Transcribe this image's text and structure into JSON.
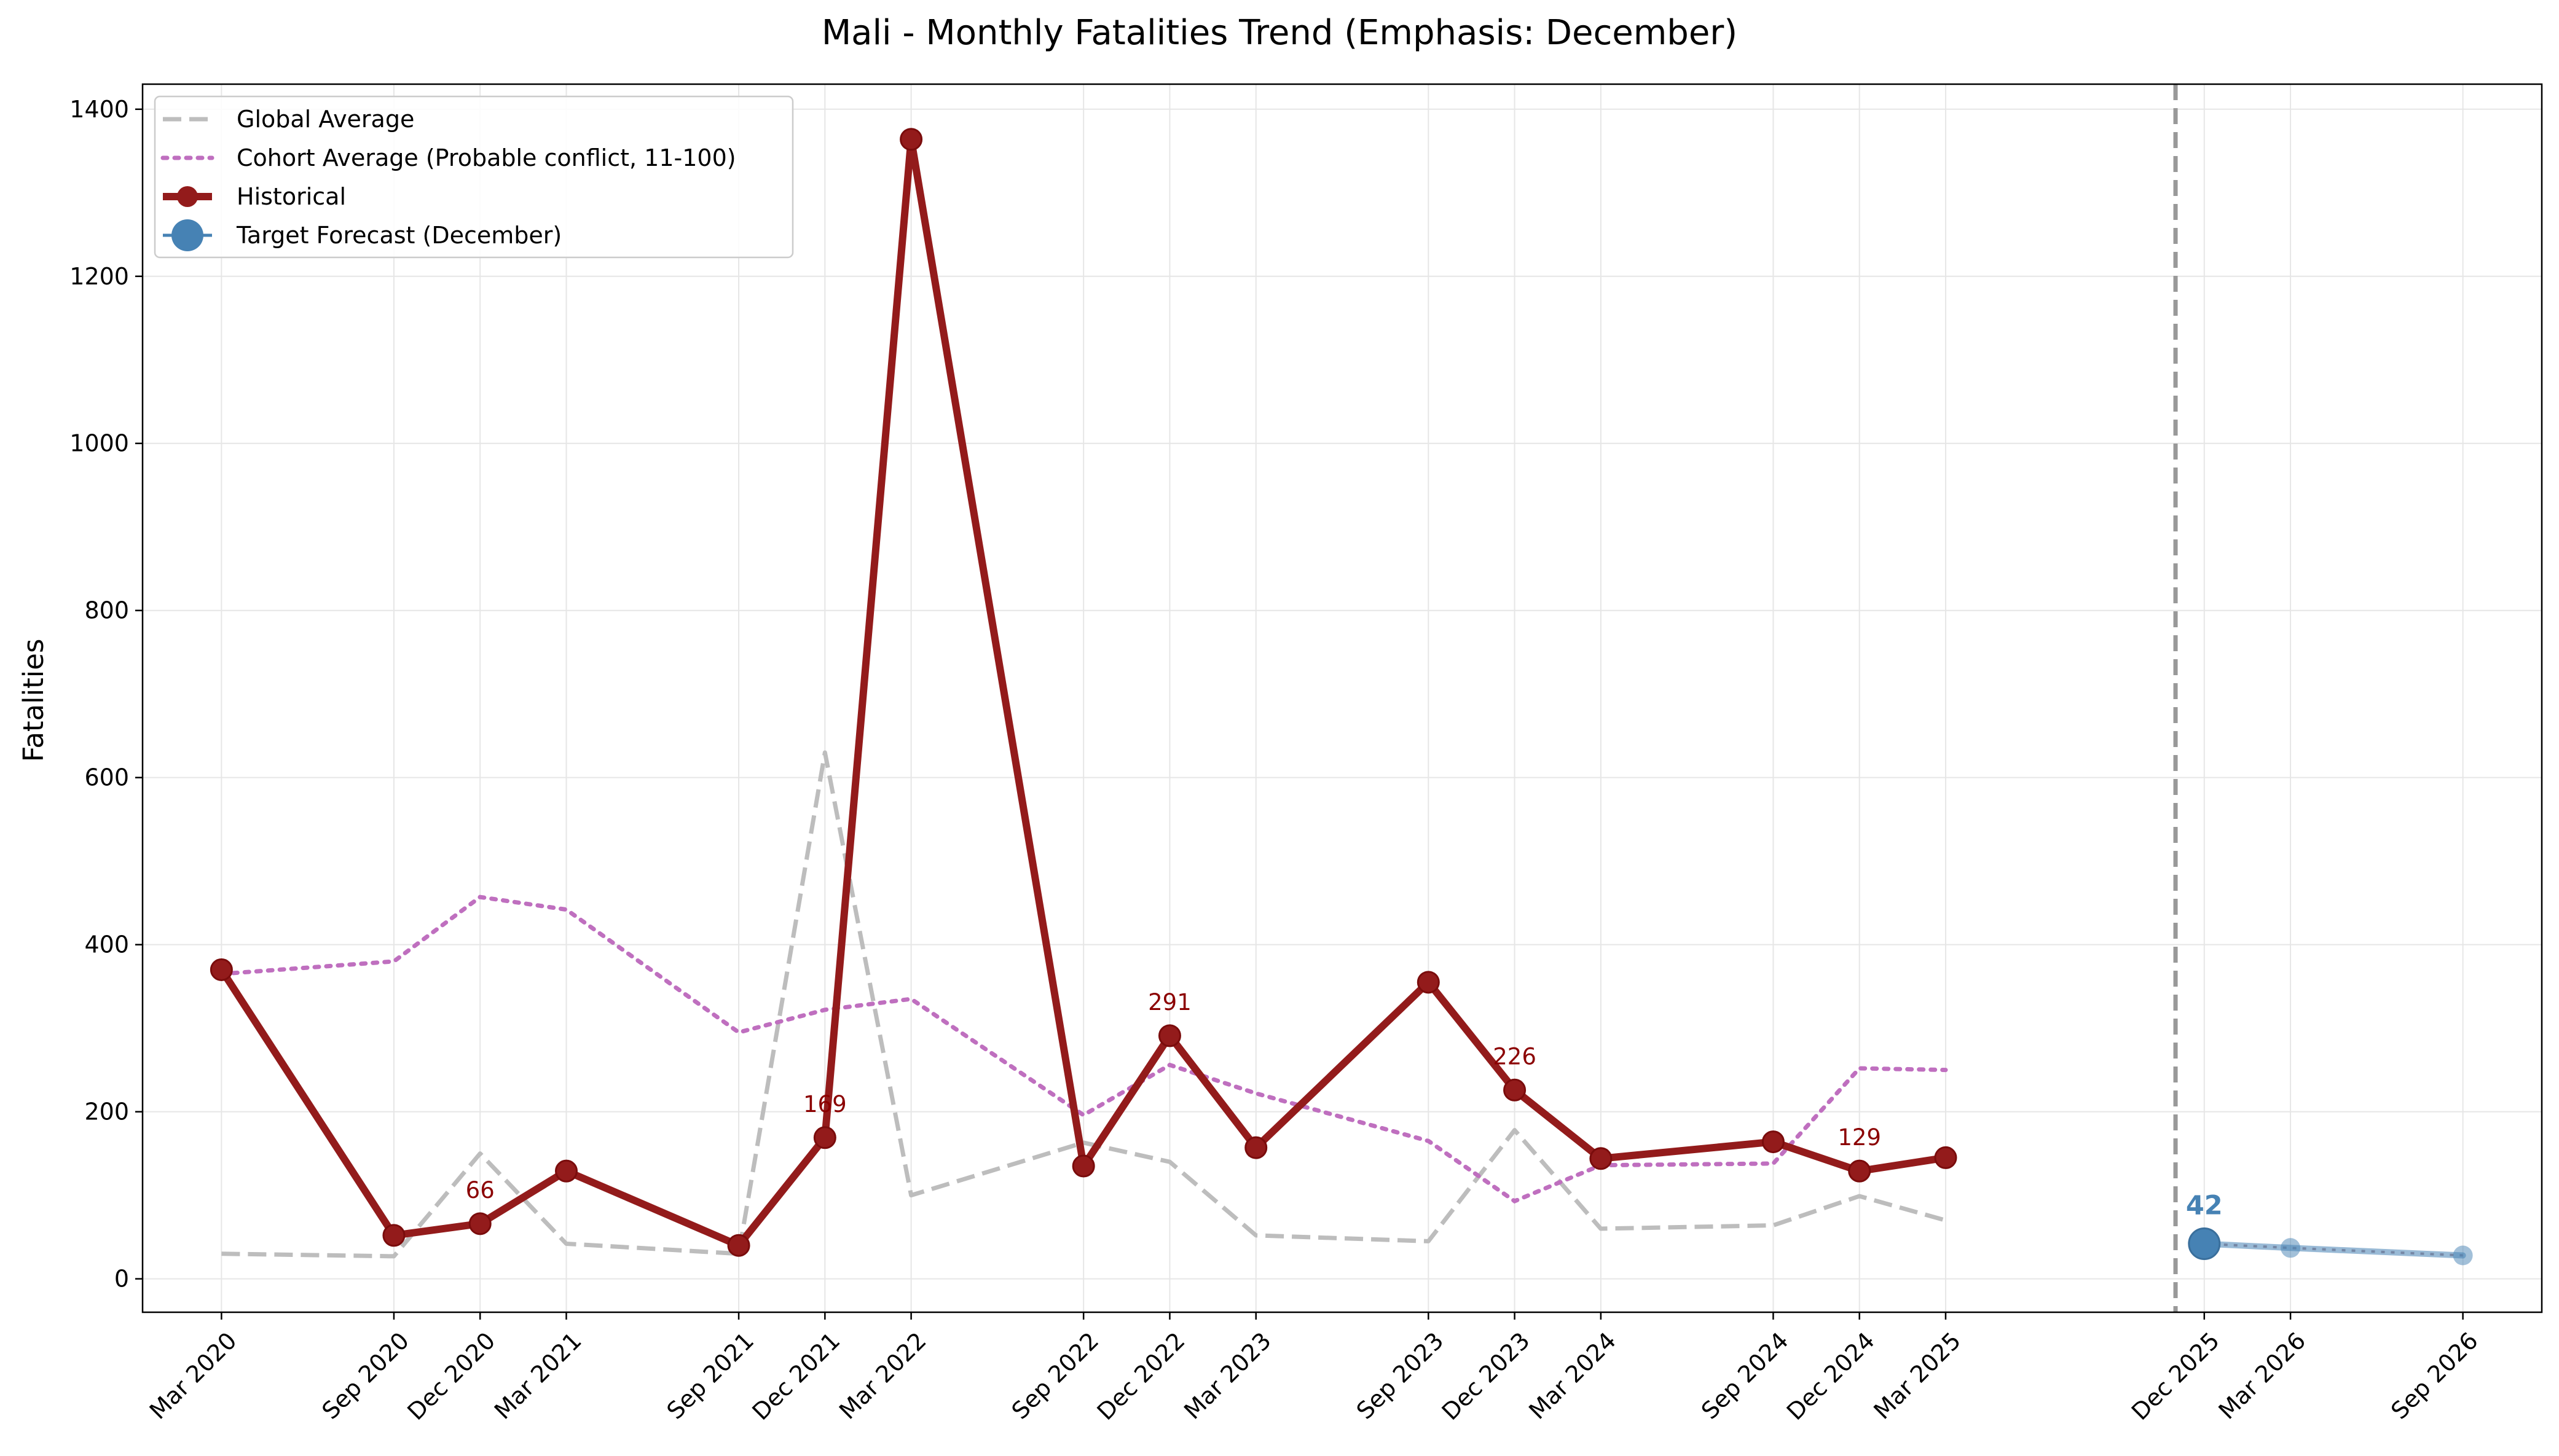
{
  "chart_data": {
    "type": "line",
    "title": "Mali - Monthly Fatalities Trend (Emphasis: December)",
    "xlabel": "",
    "ylabel": "Fatalities",
    "ylim": [
      -40,
      1430
    ],
    "yticks": [
      0,
      200,
      400,
      600,
      800,
      1000,
      1200,
      1400
    ],
    "grid": true,
    "legend_position": "upper-left",
    "x": [
      "Mar 2020",
      "Sep 2020",
      "Dec 2020",
      "Mar 2021",
      "Sep 2021",
      "Dec 2021",
      "Mar 2022",
      "Sep 2022",
      "Dec 2022",
      "Mar 2023",
      "Sep 2023",
      "Dec 2023",
      "Mar 2024",
      "Sep 2024",
      "Dec 2024",
      "Mar 2025"
    ],
    "forecast_x": [
      "Dec 2025",
      "Mar 2026",
      "Sep 2026"
    ],
    "xticks": [
      "Mar 2020",
      "Sep 2020",
      "Dec 2020",
      "Mar 2021",
      "Sep 2021",
      "Dec 2021",
      "Mar 2022",
      "Sep 2022",
      "Dec 2022",
      "Mar 2023",
      "Sep 2023",
      "Dec 2023",
      "Mar 2024",
      "Sep 2024",
      "Dec 2024",
      "Mar 2025",
      "Dec 2025",
      "Mar 2026",
      "Sep 2026"
    ],
    "forecast_divider": "Nov 2025",
    "series": [
      {
        "name": "Global Average",
        "style": "dashed",
        "color": "#bdbdbd",
        "values": [
          30,
          27,
          150,
          42,
          30,
          630,
          100,
          163,
          140,
          52,
          45,
          178,
          60,
          64,
          99,
          70
        ]
      },
      {
        "name": "Cohort Average (Probable conflict, 11-100)",
        "style": "dotted",
        "color": "#bf6fbf",
        "values": [
          365,
          380,
          457,
          442,
          295,
          322,
          335,
          196,
          256,
          222,
          165,
          93,
          136,
          138,
          252,
          250
        ]
      },
      {
        "name": "Historical",
        "style": "solid-markers",
        "color": "#931b1b",
        "values": [
          370,
          52,
          66,
          129,
          40,
          169,
          1364,
          135,
          291,
          157,
          355,
          226,
          144,
          164,
          129,
          145
        ]
      },
      {
        "name": "Target Forecast (December)",
        "style": "forecast",
        "color": "#4682b4",
        "x": [
          "Dec 2025",
          "Mar 2026",
          "Sep 2026"
        ],
        "values": [
          42,
          37,
          28
        ]
      }
    ],
    "annotations": [
      {
        "x": "Dec 2020",
        "text": "66"
      },
      {
        "x": "Dec 2021",
        "text": "169"
      },
      {
        "x": "Dec 2022",
        "text": "291"
      },
      {
        "x": "Dec 2023",
        "text": "226"
      },
      {
        "x": "Dec 2024",
        "text": "129"
      },
      {
        "x": "Dec 2025",
        "text": "42",
        "forecast": true
      }
    ]
  }
}
